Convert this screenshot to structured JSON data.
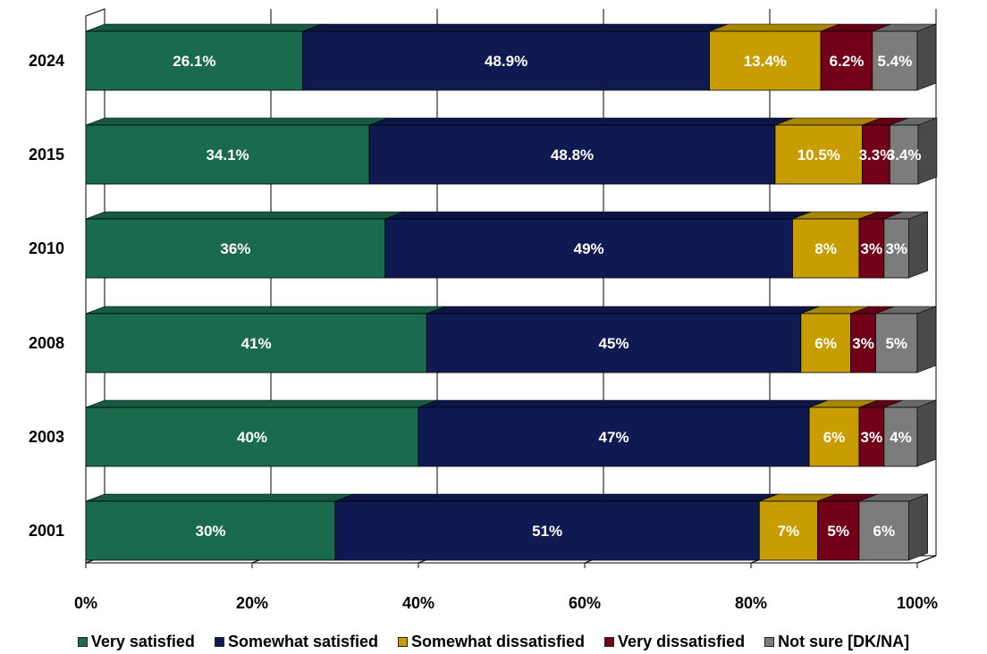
{
  "chart_data": {
    "type": "bar",
    "orientation": "horizontal",
    "stacked": "100%",
    "style": "3d",
    "categories": [
      "2024",
      "2015",
      "2010",
      "2008",
      "2003",
      "2001"
    ],
    "series": [
      {
        "name": "Very satisfied",
        "color": "#1a6a4e",
        "values": [
          26.1,
          34.1,
          36,
          41,
          40,
          30
        ],
        "labels": [
          "26.1%",
          "34.1%",
          "36%",
          "41%",
          "40%",
          "30%"
        ]
      },
      {
        "name": "Somewhat satisfied",
        "color": "#0f1a52",
        "values": [
          48.9,
          48.8,
          49,
          45,
          47,
          51
        ],
        "labels": [
          "48.9%",
          "48.8%",
          "49%",
          "45%",
          "47%",
          "51%"
        ]
      },
      {
        "name": "Somewhat dissatisfied",
        "color": "#c79d00",
        "values": [
          13.4,
          10.5,
          8,
          6,
          6,
          7
        ],
        "labels": [
          "13.4%",
          "10.5%",
          "8%",
          "6%",
          "6%",
          "7%"
        ]
      },
      {
        "name": "Very dissatisfied",
        "color": "#730019",
        "values": [
          6.2,
          3.3,
          3,
          3,
          3,
          5
        ],
        "labels": [
          "6.2%",
          "3.3%",
          "3%",
          "3%",
          "3%",
          "5%"
        ]
      },
      {
        "name": "Not sure [DK/NA]",
        "color": "#7c7c7c",
        "values": [
          5.4,
          3.4,
          3,
          5,
          4,
          6
        ],
        "labels": [
          "5.4%",
          "3.4%",
          "3%",
          "5%",
          "4%",
          "6%"
        ]
      }
    ],
    "x_ticks": [
      "0%",
      "20%",
      "40%",
      "60%",
      "80%",
      "100%"
    ],
    "xlim": [
      0,
      100
    ],
    "grid": true,
    "legend": "bottom"
  }
}
